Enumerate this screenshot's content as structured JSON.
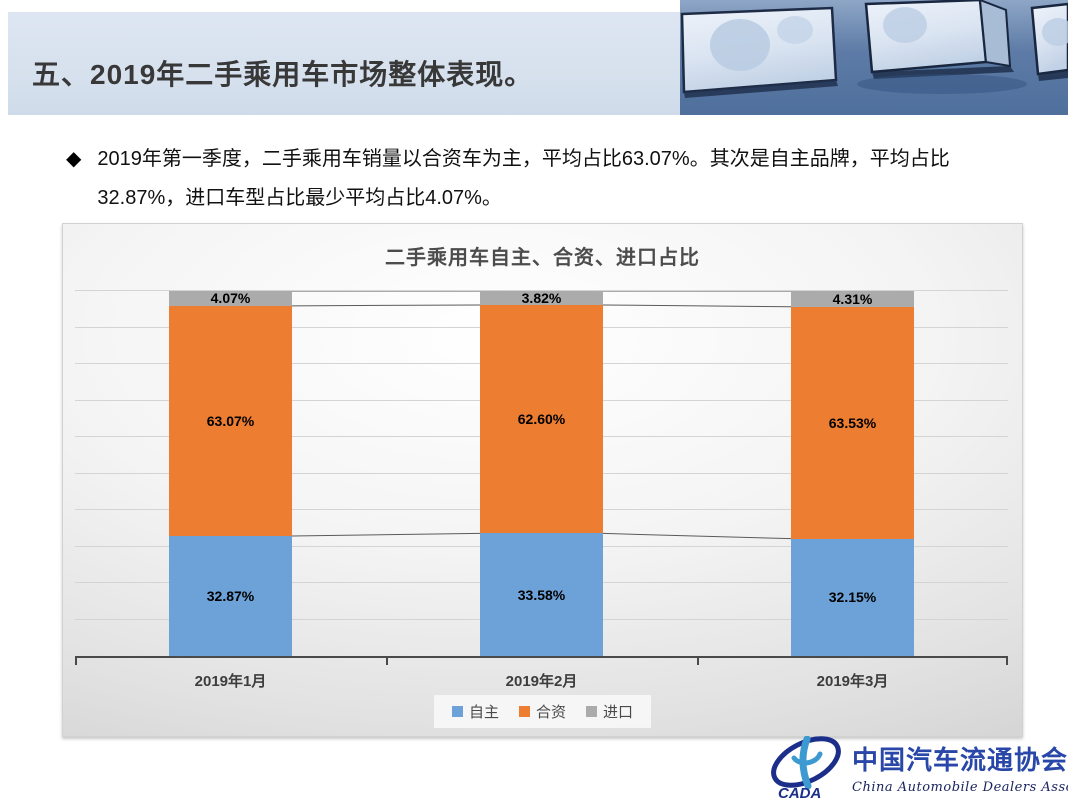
{
  "header": {
    "title": "五、2019年二手乘用车市场整体表现。",
    "band_color": "#d7e1ee"
  },
  "bullet": {
    "marker": "◆",
    "line1": "2019年第一季度，二手乘用车销量以合资车为主，平均占比63.07%。其次是自主品牌，平均占比",
    "line2": "32.87%，进口车型占比最少平均占比4.07%。"
  },
  "chart_data": {
    "type": "bar",
    "stacked": true,
    "title": "二手乘用车自主、合资、进口占比",
    "categories": [
      "2019年1月",
      "2019年2月",
      "2019年3月"
    ],
    "series": [
      {
        "name": "自主",
        "color": "#6ca2d8",
        "values": [
          32.87,
          33.58,
          32.15
        ],
        "labels": [
          "32.87%",
          "33.58%",
          "32.15%"
        ]
      },
      {
        "name": "合资",
        "color": "#ed7d31",
        "values": [
          63.07,
          62.6,
          63.53
        ],
        "labels": [
          "63.07%",
          "62.60%",
          "63.53%"
        ]
      },
      {
        "name": "进口",
        "color": "#ababab",
        "values": [
          4.07,
          3.82,
          4.31
        ],
        "labels": [
          "4.07%",
          "3.82%",
          "4.31%"
        ]
      }
    ],
    "value_suffix": "%",
    "ylim": [
      0,
      100
    ],
    "gridline_step_pct": 10,
    "grid": "horizontal",
    "legend_position": "bottom",
    "series_lines": true,
    "series_line_color": "#5a5a5a",
    "axis_color": "#4a4a4a"
  },
  "footer": {
    "logo_acronym": "CADA",
    "org_cn": "中国汽车流通协会",
    "org_en": "China Automobile Dealers Association"
  }
}
